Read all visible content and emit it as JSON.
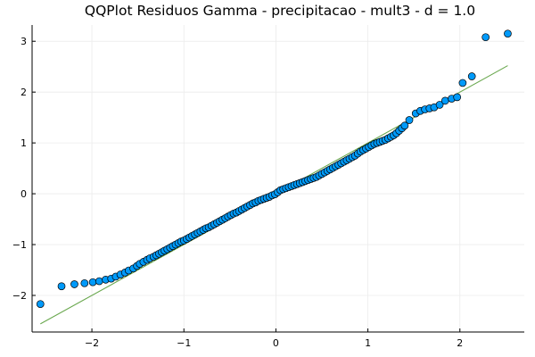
{
  "chart_data": {
    "type": "scatter",
    "title": "QQPlot Residuos Gamma - precipitacao - mult3 - d = 1.0",
    "xlabel": "",
    "ylabel": "",
    "xlim": [
      -2.65,
      2.7
    ],
    "ylim": [
      -2.72,
      3.32
    ],
    "xticks": [
      -2,
      -1,
      0,
      1,
      2
    ],
    "yticks": [
      -2,
      -1,
      0,
      1,
      2,
      3
    ],
    "xtick_labels": [
      "−2",
      "−1",
      "0",
      "1",
      "2"
    ],
    "ytick_labels": [
      "−2",
      "−1",
      "0",
      "1",
      "2",
      "3"
    ],
    "grid": true,
    "legend": "none",
    "colors": {
      "points": "#009AFA",
      "point_edge": "#000000",
      "line": "#6AA84F",
      "grid": "#EBEBEB",
      "axis": "#000000"
    },
    "reference_line": {
      "x": [
        -2.56,
        2.52
      ],
      "y": [
        -2.56,
        2.52
      ]
    },
    "points": [
      [
        -2.56,
        -2.17
      ],
      [
        -2.33,
        -1.82
      ],
      [
        -2.19,
        -1.78
      ],
      [
        -2.08,
        -1.76
      ],
      [
        -1.99,
        -1.74
      ],
      [
        -1.92,
        -1.72
      ],
      [
        -1.85,
        -1.69
      ],
      [
        -1.79,
        -1.67
      ],
      [
        -1.74,
        -1.63
      ],
      [
        -1.69,
        -1.59
      ],
      [
        -1.64,
        -1.55
      ],
      [
        -1.6,
        -1.51
      ],
      [
        -1.55,
        -1.47
      ],
      [
        -1.51,
        -1.42
      ],
      [
        -1.48,
        -1.38
      ],
      [
        -1.44,
        -1.34
      ],
      [
        -1.4,
        -1.3
      ],
      [
        -1.37,
        -1.27
      ],
      [
        -1.33,
        -1.24
      ],
      [
        -1.3,
        -1.21
      ],
      [
        -1.27,
        -1.18
      ],
      [
        -1.24,
        -1.15
      ],
      [
        -1.21,
        -1.12
      ],
      [
        -1.18,
        -1.09
      ],
      [
        -1.15,
        -1.06
      ],
      [
        -1.12,
        -1.03
      ],
      [
        -1.09,
        -1.0
      ],
      [
        -1.06,
        -0.97
      ],
      [
        -1.03,
        -0.94
      ],
      [
        -1.0,
        -0.92
      ],
      [
        -0.97,
        -0.89
      ],
      [
        -0.94,
        -0.86
      ],
      [
        -0.91,
        -0.83
      ],
      [
        -0.88,
        -0.8
      ],
      [
        -0.85,
        -0.77
      ],
      [
        -0.82,
        -0.74
      ],
      [
        -0.79,
        -0.71
      ],
      [
        -0.76,
        -0.68
      ],
      [
        -0.73,
        -0.66
      ],
      [
        -0.7,
        -0.63
      ],
      [
        -0.67,
        -0.6
      ],
      [
        -0.64,
        -0.57
      ],
      [
        -0.61,
        -0.54
      ],
      [
        -0.58,
        -0.51
      ],
      [
        -0.55,
        -0.48
      ],
      [
        -0.52,
        -0.45
      ],
      [
        -0.49,
        -0.42
      ],
      [
        -0.46,
        -0.39
      ],
      [
        -0.43,
        -0.37
      ],
      [
        -0.4,
        -0.34
      ],
      [
        -0.37,
        -0.31
      ],
      [
        -0.34,
        -0.28
      ],
      [
        -0.31,
        -0.25
      ],
      [
        -0.28,
        -0.22
      ],
      [
        -0.25,
        -0.19
      ],
      [
        -0.22,
        -0.17
      ],
      [
        -0.19,
        -0.14
      ],
      [
        -0.16,
        -0.12
      ],
      [
        -0.13,
        -0.1
      ],
      [
        -0.1,
        -0.08
      ],
      [
        -0.07,
        -0.06
      ],
      [
        -0.04,
        -0.03
      ],
      [
        -0.01,
        -0.01
      ],
      [
        0.02,
        0.03
      ],
      [
        0.05,
        0.07
      ],
      [
        0.08,
        0.09
      ],
      [
        0.11,
        0.11
      ],
      [
        0.14,
        0.13
      ],
      [
        0.17,
        0.15
      ],
      [
        0.2,
        0.17
      ],
      [
        0.23,
        0.19
      ],
      [
        0.26,
        0.21
      ],
      [
        0.29,
        0.23
      ],
      [
        0.32,
        0.25
      ],
      [
        0.35,
        0.27
      ],
      [
        0.38,
        0.29
      ],
      [
        0.41,
        0.31
      ],
      [
        0.44,
        0.33
      ],
      [
        0.47,
        0.36
      ],
      [
        0.5,
        0.39
      ],
      [
        0.53,
        0.42
      ],
      [
        0.56,
        0.45
      ],
      [
        0.59,
        0.48
      ],
      [
        0.62,
        0.51
      ],
      [
        0.65,
        0.54
      ],
      [
        0.68,
        0.57
      ],
      [
        0.71,
        0.6
      ],
      [
        0.74,
        0.63
      ],
      [
        0.77,
        0.66
      ],
      [
        0.8,
        0.69
      ],
      [
        0.83,
        0.72
      ],
      [
        0.86,
        0.75
      ],
      [
        0.89,
        0.79
      ],
      [
        0.92,
        0.83
      ],
      [
        0.95,
        0.86
      ],
      [
        0.98,
        0.89
      ],
      [
        1.01,
        0.92
      ],
      [
        1.04,
        0.95
      ],
      [
        1.07,
        0.98
      ],
      [
        1.1,
        1.0
      ],
      [
        1.13,
        1.02
      ],
      [
        1.16,
        1.04
      ],
      [
        1.19,
        1.06
      ],
      [
        1.22,
        1.09
      ],
      [
        1.25,
        1.12
      ],
      [
        1.28,
        1.15
      ],
      [
        1.31,
        1.19
      ],
      [
        1.34,
        1.24
      ],
      [
        1.37,
        1.29
      ],
      [
        1.4,
        1.34
      ],
      [
        1.45,
        1.45
      ],
      [
        1.52,
        1.58
      ],
      [
        1.57,
        1.63
      ],
      [
        1.62,
        1.66
      ],
      [
        1.67,
        1.68
      ],
      [
        1.72,
        1.7
      ],
      [
        1.78,
        1.75
      ],
      [
        1.84,
        1.83
      ],
      [
        1.91,
        1.87
      ],
      [
        1.97,
        1.9
      ],
      [
        2.03,
        2.18
      ],
      [
        2.13,
        2.31
      ],
      [
        2.28,
        3.08
      ],
      [
        2.52,
        3.15
      ]
    ]
  }
}
